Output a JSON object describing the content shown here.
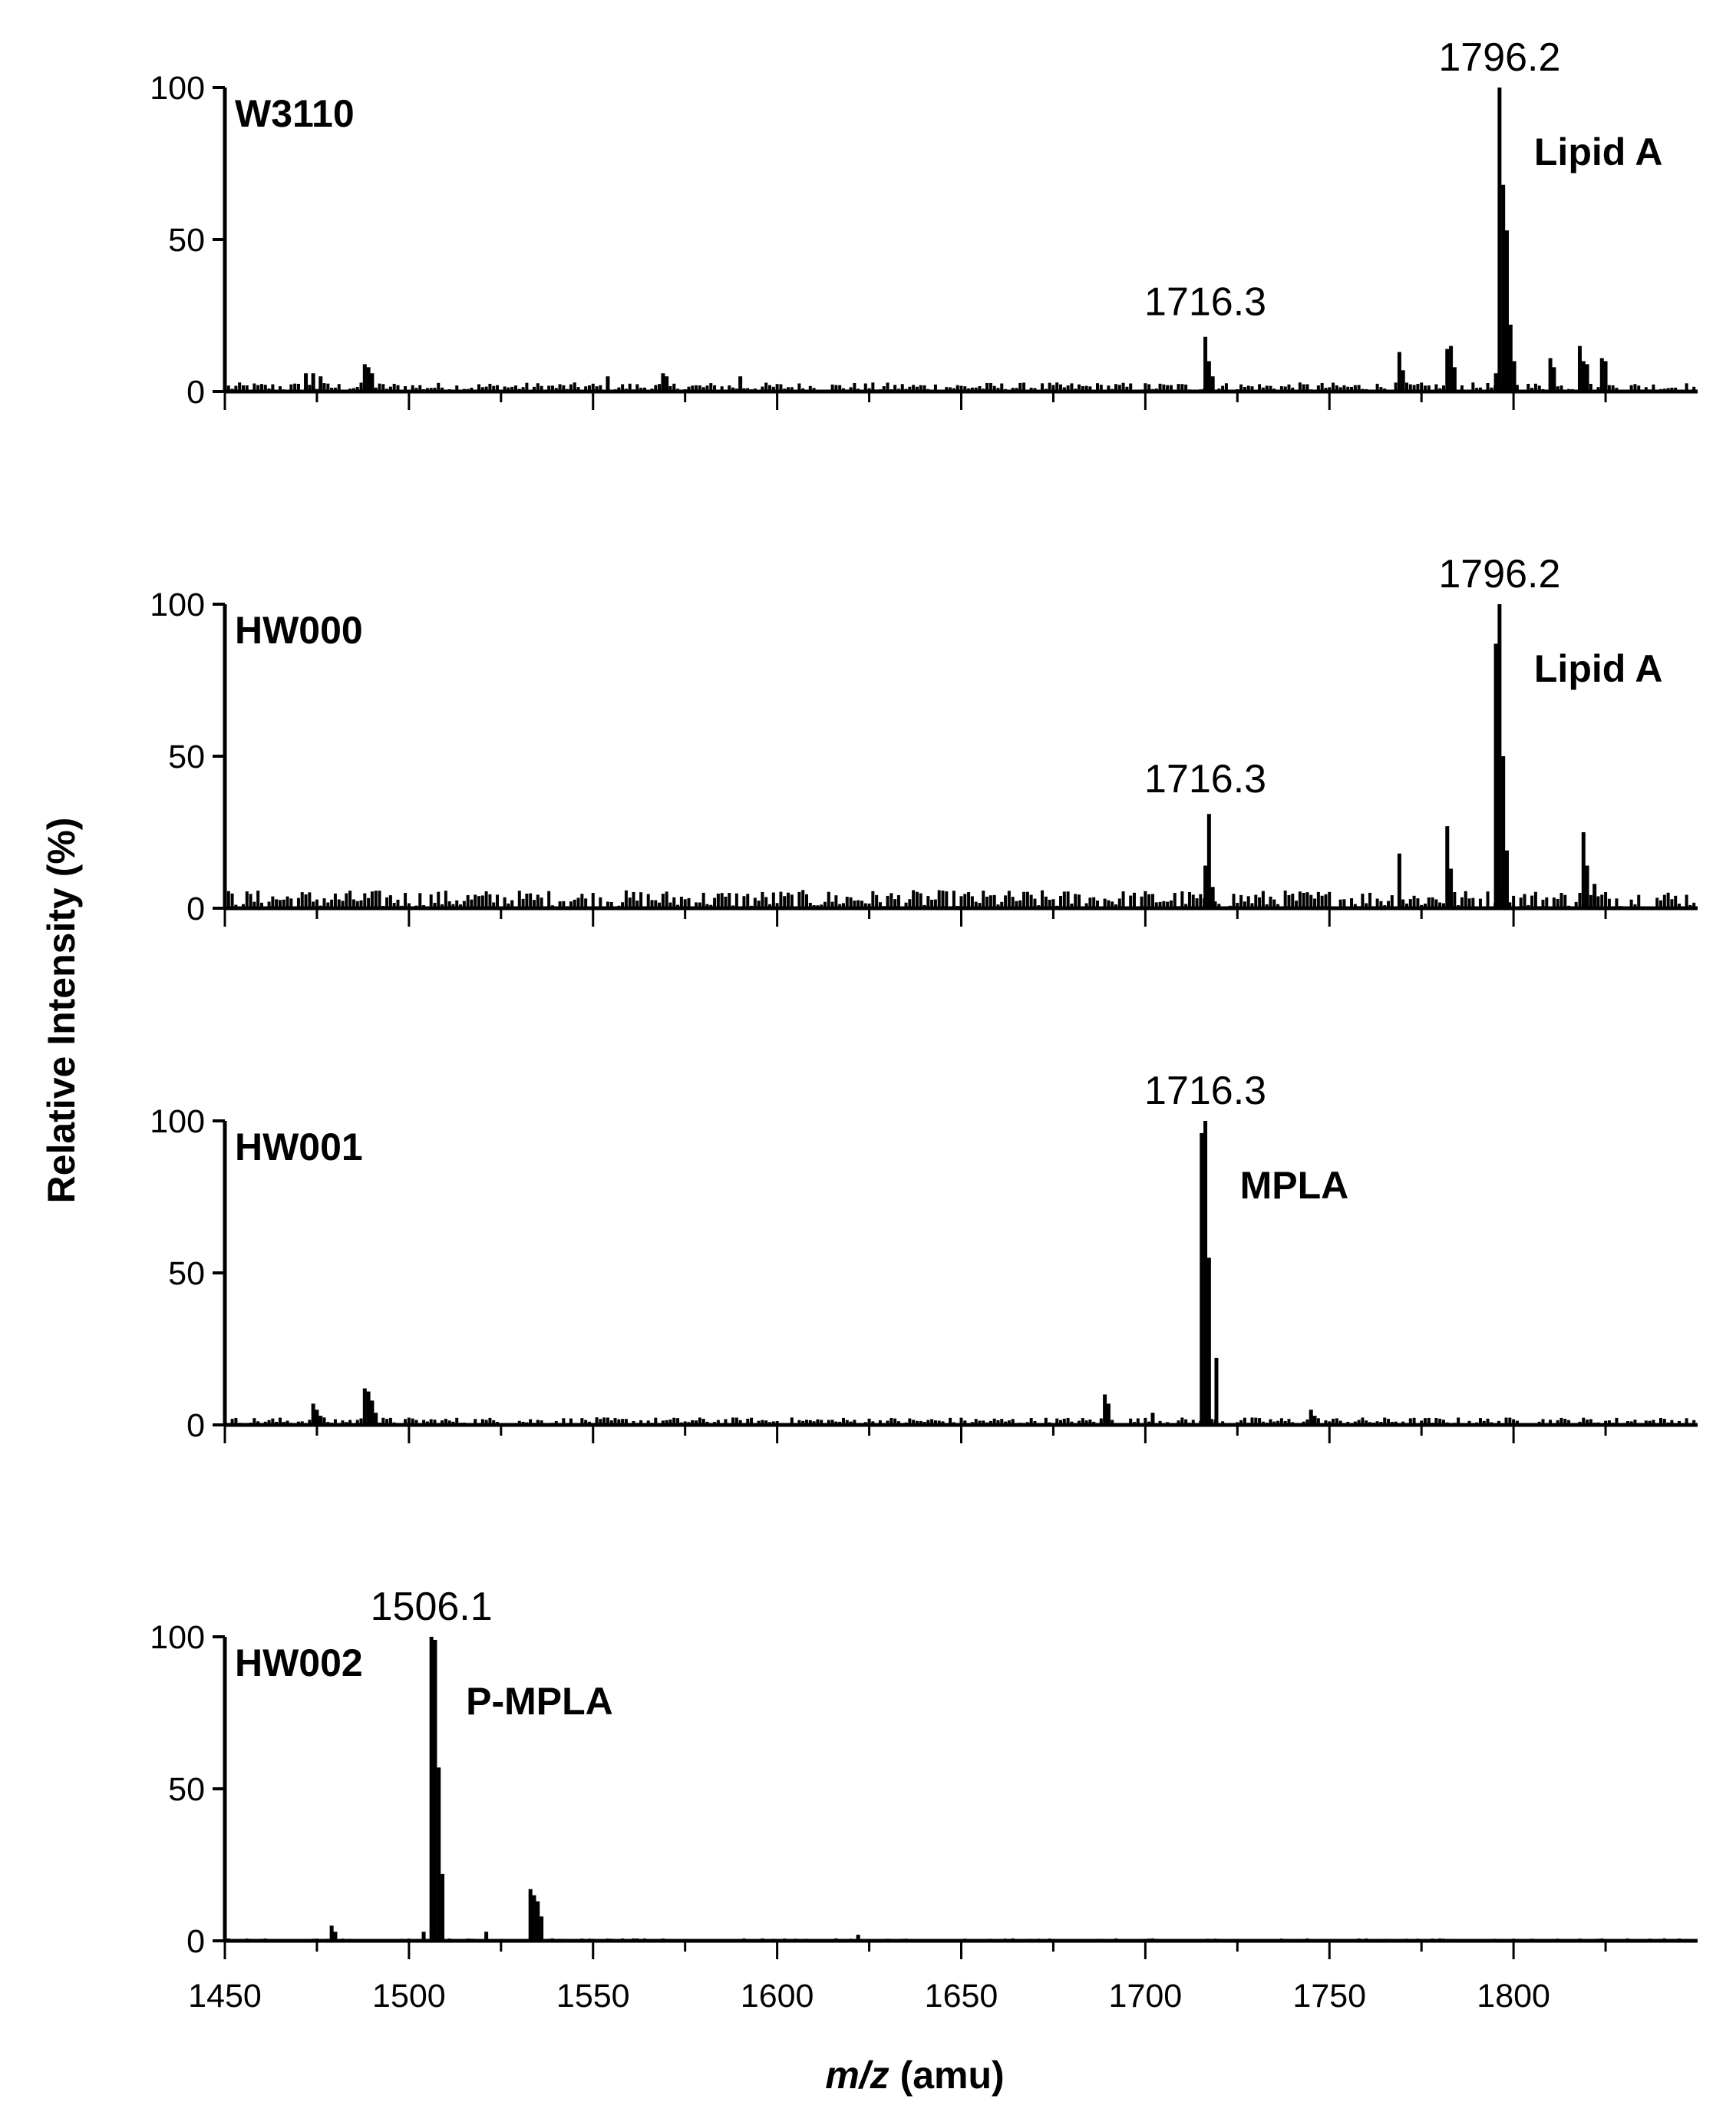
{
  "chart_data": {
    "type": "bar",
    "ylabel": "Relative Intensity (%)",
    "xlabel_italic": "m/z",
    "xlabel_unit": "(amu)",
    "xlim": [
      1450,
      1850
    ],
    "ylim": [
      0,
      100
    ],
    "x_ticks": [
      "1450",
      "1500",
      "1550",
      "1600",
      "1650",
      "1700",
      "1750",
      "1800"
    ],
    "y_ticks": [
      "0",
      "50",
      "100"
    ],
    "panels": [
      {
        "sample": "W3110",
        "noise": 3,
        "species_label": "Lipid A",
        "peak_labels": [
          {
            "x": 1716.3,
            "text": "1716.3"
          },
          {
            "x": 1796.2,
            "text": "1796.2"
          }
        ],
        "peaks": [
          [
            1472,
            6
          ],
          [
            1474,
            6
          ],
          [
            1476,
            5
          ],
          [
            1488,
            9
          ],
          [
            1489,
            8
          ],
          [
            1490,
            6
          ],
          [
            1554,
            5
          ],
          [
            1569,
            6
          ],
          [
            1570,
            5
          ],
          [
            1590,
            5
          ],
          [
            1716.3,
            18
          ],
          [
            1717.3,
            10
          ],
          [
            1718.3,
            5
          ],
          [
            1769,
            13
          ],
          [
            1770,
            7
          ],
          [
            1782,
            14
          ],
          [
            1783,
            15
          ],
          [
            1784,
            8
          ],
          [
            1795.2,
            6
          ],
          [
            1796.2,
            100
          ],
          [
            1797.2,
            68
          ],
          [
            1798.2,
            53
          ],
          [
            1799.2,
            22
          ],
          [
            1800.2,
            10
          ],
          [
            1810,
            11
          ],
          [
            1811,
            8
          ],
          [
            1818,
            15
          ],
          [
            1819,
            10
          ],
          [
            1820,
            9
          ],
          [
            1824,
            11
          ],
          [
            1825,
            10
          ]
        ]
      },
      {
        "sample": "HW000",
        "noise": 6,
        "species_label": "Lipid A",
        "peak_labels": [
          {
            "x": 1716.3,
            "text": "1716.3"
          },
          {
            "x": 1796.2,
            "text": "1796.2"
          }
        ],
        "peaks": [
          [
            1716.3,
            14
          ],
          [
            1717.3,
            31
          ],
          [
            1718.3,
            7
          ],
          [
            1769,
            18
          ],
          [
            1782,
            27
          ],
          [
            1783,
            13
          ],
          [
            1795.2,
            87
          ],
          [
            1796.2,
            100
          ],
          [
            1797.2,
            50
          ],
          [
            1798.2,
            19
          ],
          [
            1819,
            25
          ],
          [
            1820,
            14
          ],
          [
            1822,
            8
          ]
        ]
      },
      {
        "sample": "HW001",
        "noise": 2.5,
        "species_label": "MPLA",
        "peak_labels": [
          {
            "x": 1716.3,
            "text": "1716.3"
          }
        ],
        "peaks": [
          [
            1474,
            7
          ],
          [
            1475,
            5
          ],
          [
            1476,
            3
          ],
          [
            1488,
            12
          ],
          [
            1489,
            11
          ],
          [
            1490,
            8
          ],
          [
            1491,
            4
          ],
          [
            1689,
            10
          ],
          [
            1690,
            7
          ],
          [
            1702,
            4
          ],
          [
            1715.3,
            96
          ],
          [
            1716.3,
            100
          ],
          [
            1717.3,
            55
          ],
          [
            1719.3,
            22
          ],
          [
            1745,
            5
          ],
          [
            1746,
            3
          ]
        ]
      },
      {
        "sample": "HW002",
        "noise": 0.8,
        "species_label": "P-MPLA",
        "peak_labels": [
          {
            "x": 1506.1,
            "text": "1506.1"
          }
        ],
        "peaks": [
          [
            1479,
            5
          ],
          [
            1480,
            3
          ],
          [
            1504,
            3
          ],
          [
            1506.1,
            100
          ],
          [
            1507.1,
            99
          ],
          [
            1508.1,
            57
          ],
          [
            1509.1,
            22
          ],
          [
            1521,
            3
          ],
          [
            1533,
            17
          ],
          [
            1534,
            15
          ],
          [
            1535,
            13
          ],
          [
            1536,
            8
          ],
          [
            1622,
            2
          ]
        ]
      }
    ]
  }
}
